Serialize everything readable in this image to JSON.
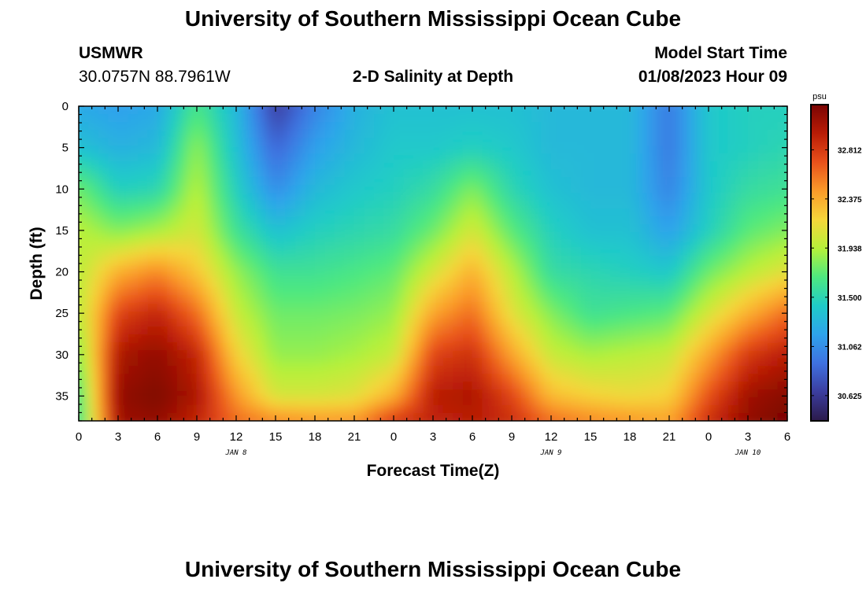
{
  "page": {
    "title_top": "University of Southern Mississippi Ocean Cube",
    "title_bottom": "University of Southern Mississippi Ocean Cube",
    "station_name": "USMWR",
    "station_coords": "30.0757N  88.7961W",
    "plot_title": "2-D Salinity at Depth",
    "model_label": "Model Start Time",
    "model_time": "01/08/2023 Hour 09"
  },
  "colors": {
    "colormap": [
      "#2b1a4a",
      "#3b3d9e",
      "#3f71e0",
      "#2ea3ec",
      "#1fcbc8",
      "#4ee87f",
      "#b5f13a",
      "#f6d63a",
      "#fb9b2a",
      "#e9511b",
      "#b91c06",
      "#7a0403"
    ]
  },
  "chart_data": {
    "type": "heatmap",
    "title": "2-D Salinity at Depth",
    "xlabel": "Forecast Time(Z)",
    "ylabel": "Depth (ft)",
    "x_tick_labels": [
      "0",
      "3",
      "6",
      "9",
      "12",
      "15",
      "18",
      "21",
      "0",
      "3",
      "6",
      "9",
      "12",
      "15",
      "18",
      "21",
      "0",
      "3",
      "6"
    ],
    "x_range_hours": [
      0,
      54
    ],
    "date_labels": [
      {
        "text": "JAN 8",
        "hour": 12
      },
      {
        "text": "JAN 9",
        "hour": 36
      },
      {
        "text": "JAN 10",
        "hour": 51
      }
    ],
    "y_tick_labels": [
      "0",
      "5",
      "10",
      "15",
      "20",
      "25",
      "30",
      "35"
    ],
    "y_range_ft": [
      0,
      38
    ],
    "colorbar": {
      "unit": "psu",
      "min": 30.4,
      "max": 33.2,
      "labels": [
        "32.812",
        "32.375",
        "31.938",
        "31.500",
        "31.062",
        "30.625"
      ]
    },
    "sample_hours": [
      0,
      3,
      6,
      9,
      12,
      15,
      18,
      21,
      24,
      27,
      30,
      33,
      36,
      39,
      42,
      45,
      48,
      51,
      54
    ],
    "sample_depths_ft": [
      0,
      5,
      10,
      15,
      20,
      25,
      30,
      35,
      38
    ],
    "salinity_psu": [
      [
        31.2,
        31.35,
        31.75,
        31.95,
        31.95,
        31.95,
        31.8,
        31.62,
        31.58
      ],
      [
        31.15,
        31.25,
        31.45,
        31.8,
        32.35,
        32.75,
        33.0,
        33.1,
        33.05
      ],
      [
        31.2,
        31.3,
        31.5,
        31.9,
        32.5,
        32.9,
        33.1,
        33.18,
        33.1
      ],
      [
        31.65,
        31.85,
        31.95,
        32.05,
        32.25,
        32.6,
        32.9,
        33.0,
        32.9
      ],
      [
        31.3,
        31.35,
        31.45,
        31.6,
        31.85,
        32.0,
        32.2,
        32.45,
        32.6
      ],
      [
        30.65,
        30.85,
        31.05,
        31.35,
        31.6,
        31.75,
        31.85,
        32.05,
        32.5
      ],
      [
        31.0,
        31.15,
        31.3,
        31.45,
        31.6,
        31.75,
        31.85,
        32.05,
        32.45
      ],
      [
        31.25,
        31.3,
        31.4,
        31.5,
        31.65,
        31.78,
        31.9,
        32.1,
        32.45
      ],
      [
        31.35,
        31.4,
        31.45,
        31.55,
        31.72,
        31.85,
        32.0,
        32.35,
        32.8
      ],
      [
        31.35,
        31.4,
        31.55,
        31.75,
        32.05,
        32.4,
        32.75,
        32.95,
        32.9
      ],
      [
        31.35,
        31.45,
        31.8,
        32.05,
        32.35,
        32.6,
        32.85,
        33.0,
        32.95
      ],
      [
        31.35,
        31.4,
        31.5,
        31.7,
        31.95,
        32.1,
        32.4,
        32.75,
        32.85
      ],
      [
        31.3,
        31.3,
        31.35,
        31.45,
        31.55,
        31.8,
        32.0,
        32.3,
        32.6
      ],
      [
        31.3,
        31.3,
        31.3,
        31.35,
        31.5,
        31.6,
        31.9,
        32.2,
        32.5
      ],
      [
        31.3,
        31.3,
        31.3,
        31.35,
        31.45,
        31.65,
        31.95,
        32.15,
        32.45
      ],
      [
        30.95,
        30.95,
        31.0,
        31.15,
        31.4,
        31.7,
        32.0,
        32.2,
        32.4
      ],
      [
        31.4,
        31.4,
        31.4,
        31.45,
        31.75,
        32.05,
        32.4,
        32.7,
        32.85
      ],
      [
        31.45,
        31.45,
        31.55,
        31.7,
        31.95,
        32.35,
        32.8,
        33.05,
        33.1
      ],
      [
        31.45,
        31.5,
        31.6,
        31.8,
        32.1,
        32.6,
        32.95,
        33.15,
        33.2
      ]
    ]
  },
  "axis_text": {
    "xlabel": "Forecast Time(Z)",
    "ylabel": "Depth (ft)",
    "unit": "psu"
  }
}
